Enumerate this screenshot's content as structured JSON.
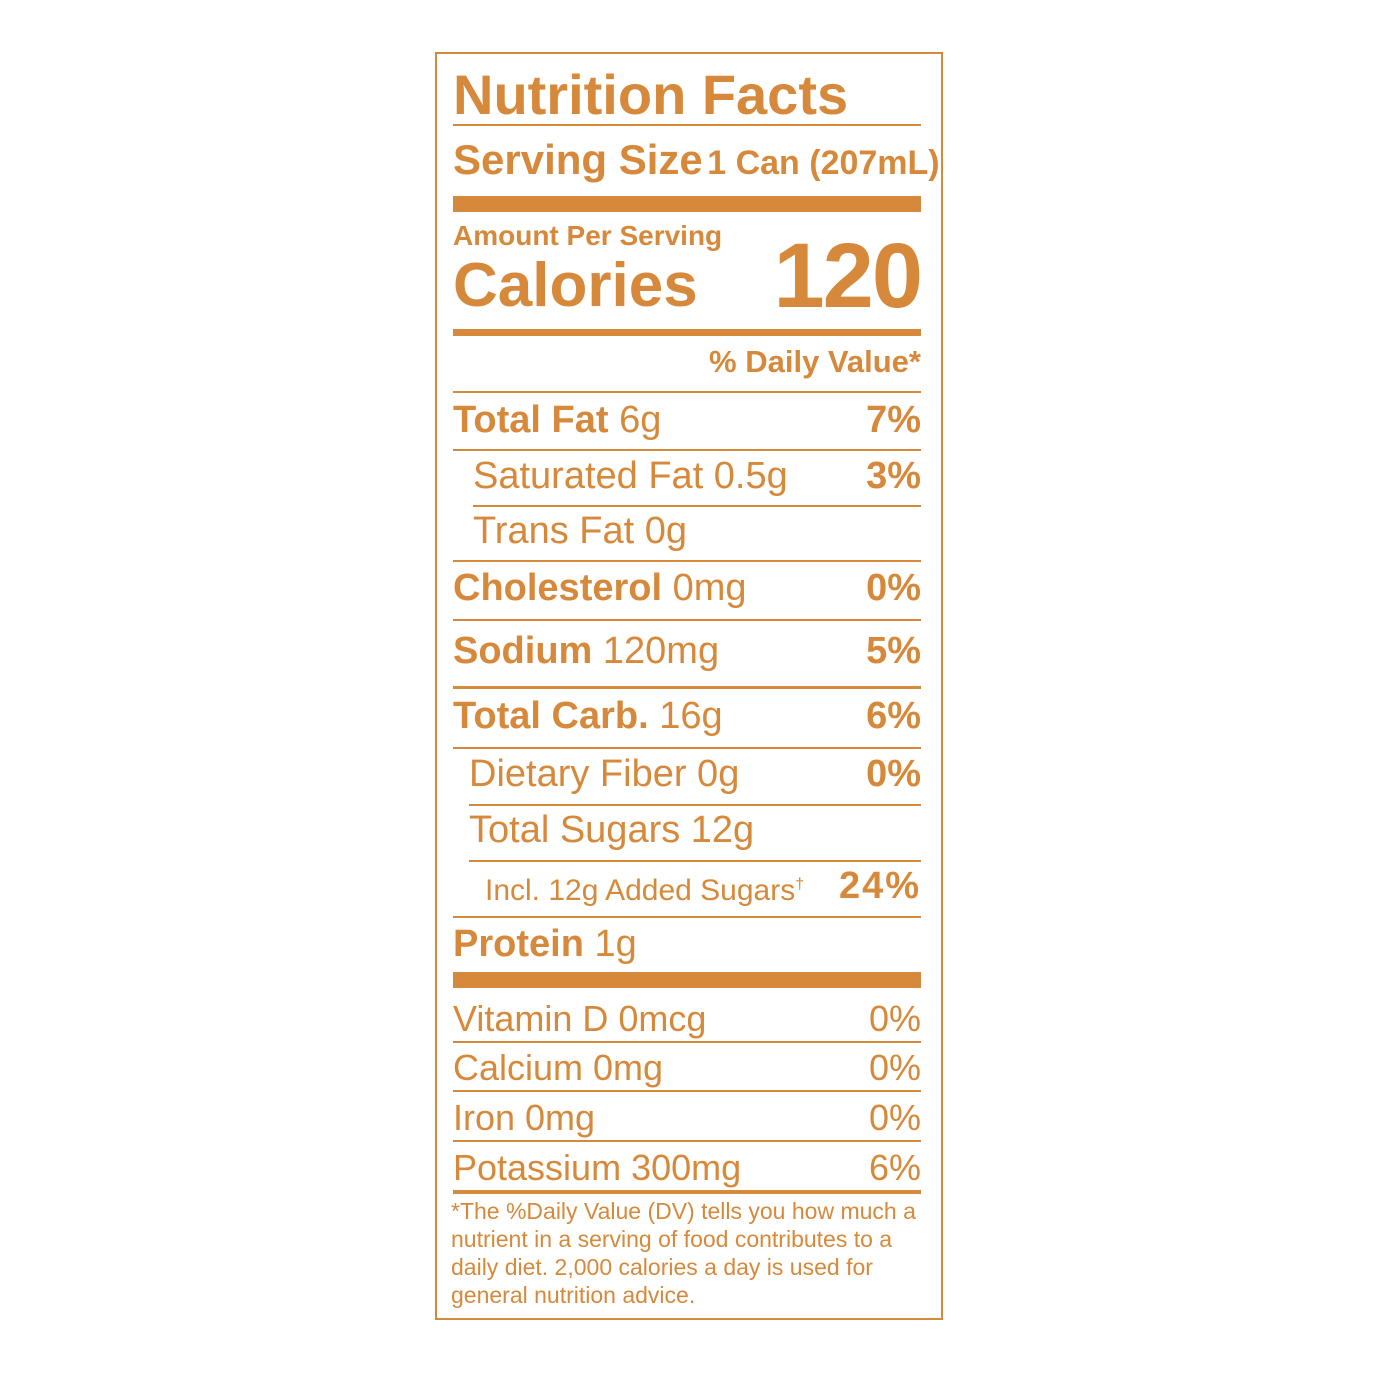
{
  "colors": {
    "label": "#d6893a",
    "background": "#ffffff"
  },
  "title": "Nutrition Facts",
  "serving": {
    "label": "Serving Size",
    "value": "1 Can (207mL)"
  },
  "amount_per_serving": "Amount Per Serving",
  "calories": {
    "label": "Calories",
    "value": "120"
  },
  "daily_value_header": "% Daily Value*",
  "nutrients": [
    {
      "name": "Total Fat",
      "amount": "6g",
      "dv": "7%"
    },
    {
      "name": "Saturated Fat 0.5g",
      "amount": "",
      "dv": "3%"
    },
    {
      "name": "Trans Fat 0g",
      "amount": "",
      "dv": ""
    },
    {
      "name": "Cholesterol",
      "amount": "0mg",
      "dv": "0%"
    },
    {
      "name": "Sodium",
      "amount": "120mg",
      "dv": "5%"
    },
    {
      "name": "Total Carb.",
      "amount": "16g",
      "dv": "6%"
    },
    {
      "name": "Dietary Fiber 0g",
      "amount": "",
      "dv": "0%"
    },
    {
      "name": "Total Sugars 12g",
      "amount": "",
      "dv": ""
    },
    {
      "name": "Incl. 12g Added Sugars",
      "dagger": "†",
      "amount": "",
      "dv": "24%"
    },
    {
      "name": "Protein",
      "amount": "1g",
      "dv": ""
    }
  ],
  "vitamins": [
    {
      "name": "Vitamin D 0mcg",
      "dv": "0%"
    },
    {
      "name": "Calcium 0mg",
      "dv": "0%"
    },
    {
      "name": "Iron 0mg",
      "dv": "0%"
    },
    {
      "name": "Potassium 300mg",
      "dv": "6%"
    }
  ],
  "footnote": "*The %Daily Value (DV) tells you how much a nutrient in a serving of food contributes to a daily diet. 2,000 calories a day is used for general nutrition advice."
}
